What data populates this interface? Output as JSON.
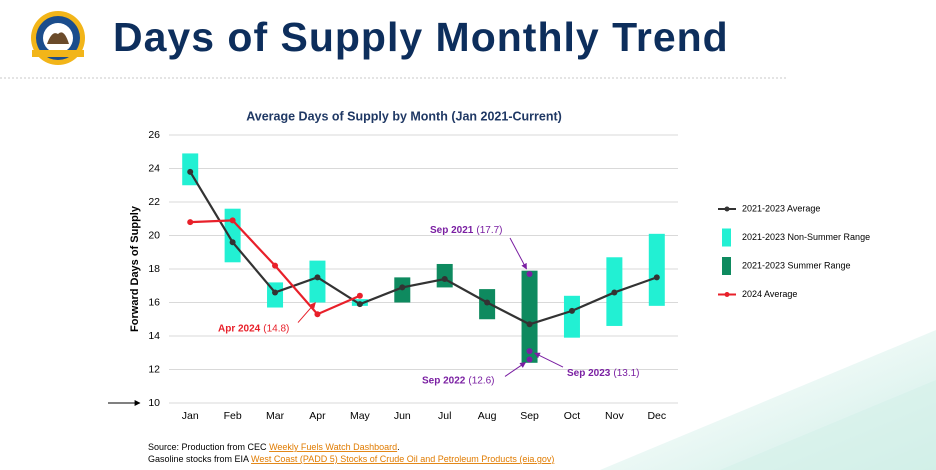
{
  "header": {
    "title": "Days of Supply Monthly Trend"
  },
  "chart_data": {
    "type": "line",
    "title": "Average Days of Supply by Month (Jan 2021-Current)",
    "y_label": "Forward Days of Supply",
    "categories": [
      "Jan",
      "Feb",
      "Mar",
      "Apr",
      "May",
      "Jun",
      "Jul",
      "Aug",
      "Sep",
      "Oct",
      "Nov",
      "Dec"
    ],
    "ylim": [
      10,
      26
    ],
    "yticks": [
      10,
      12,
      14,
      16,
      18,
      20,
      22,
      24,
      26
    ],
    "grid": true,
    "legend": "right",
    "series": [
      {
        "name": "2021-2023 Average",
        "type": "line",
        "color": "#333333",
        "values": [
          23.8,
          19.6,
          16.6,
          17.5,
          15.9,
          16.9,
          17.4,
          16.0,
          14.7,
          15.5,
          16.6,
          17.5
        ]
      },
      {
        "name": "2021-2023 Non-Summer Range",
        "type": "range",
        "color": "#22f0d3",
        "low": [
          23.0,
          18.4,
          15.7,
          16.0,
          15.8,
          null,
          null,
          null,
          null,
          13.9,
          14.6,
          15.8
        ],
        "high": [
          24.9,
          21.6,
          17.2,
          18.5,
          16.2,
          null,
          null,
          null,
          null,
          16.4,
          18.7,
          20.1
        ]
      },
      {
        "name": "2021-2023 Summer Range",
        "type": "range",
        "color": "#0e8a5f",
        "low": [
          null,
          null,
          null,
          null,
          null,
          16.0,
          16.9,
          15.0,
          12.4,
          null,
          null,
          null
        ],
        "high": [
          null,
          null,
          null,
          null,
          null,
          17.5,
          18.3,
          16.8,
          17.9,
          null,
          null,
          null
        ]
      },
      {
        "name": "2024 Average",
        "type": "line",
        "color": "#e8202a",
        "values": [
          20.8,
          20.9,
          18.2,
          15.3,
          16.4,
          null,
          null,
          null,
          null,
          null,
          null,
          null
        ]
      }
    ],
    "annotations": [
      {
        "label": "Sep 2021",
        "value_label": "(17.7)",
        "value": 17.7,
        "color": "#7a1fa2"
      },
      {
        "label": "Sep 2022",
        "value_label": "(12.6)",
        "value": 12.6,
        "color": "#7a1fa2"
      },
      {
        "label": "Sep 2023",
        "value_label": "(13.1)",
        "value": 13.1,
        "color": "#7a1fa2"
      },
      {
        "label": "Apr 2024",
        "value_label": "(14.8)",
        "value": 14.8,
        "color": "#e8202a"
      }
    ]
  },
  "source": {
    "line1": "Source: Production from CEC ",
    "link1": "Weekly Fuels Watch Dashboard",
    "end1": ".",
    "line2": "Gasoline stocks from EIA ",
    "link2": "West Coast (PADD 5) Stocks of Crude Oil and Petroleum Products (eia.gov)"
  }
}
